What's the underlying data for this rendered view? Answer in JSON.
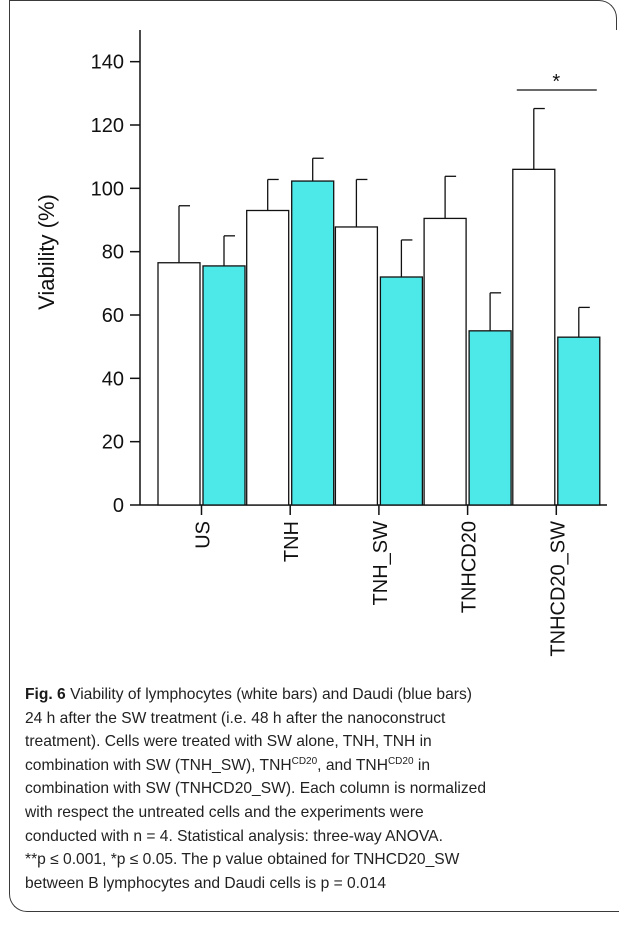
{
  "chart_data": {
    "type": "bar",
    "categories": [
      "US",
      "TNH",
      "TNH_SW",
      "TNHCD20",
      "TNHCD20_SW"
    ],
    "series": [
      {
        "name": "lymphocytes (white bars)",
        "color": "#ffffff",
        "values": [
          76.5,
          93,
          87.8,
          90.5,
          106
        ],
        "errors": [
          18,
          9.8,
          15,
          13.3,
          19.2
        ]
      },
      {
        "name": "Daudi (blue bars)",
        "color": "#4de8e8",
        "values": [
          75.5,
          102.3,
          72,
          55,
          53
        ],
        "errors": [
          9.5,
          7.2,
          11.7,
          12,
          9.4
        ]
      }
    ],
    "ylabel": "Viability (%)",
    "ylim": [
      0,
      150
    ],
    "yticks": [
      "0",
      "20",
      "40",
      "60",
      "80",
      "100",
      "120",
      "140"
    ],
    "significance": {
      "category": "TNHCD20_SW",
      "label": "*"
    }
  },
  "caption": {
    "fig_label": "Fig. 6",
    "lines": [
      "Viability of lymphocytes (white bars) and Daudi (blue bars)",
      "24 h after the SW treatment (i.e. 48 h after the nanoconstruct",
      "treatment). Cells were treated with SW alone, TNH, TNH in",
      "combination with SW (TNH_SW), TNH|CD20|, and TNH|CD20| in",
      "combination with SW (TNHCD20_SW). Each column is normalized",
      "with respect the untreated cells and the experiments were",
      "conducted with n = 4. Statistical analysis: three-way ANOVA.",
      "**p ≤ 0.001, *p ≤ 0.05. The p value obtained for TNHCD20_SW",
      "between B lymphocytes and Daudi cells is p = 0.014"
    ]
  }
}
